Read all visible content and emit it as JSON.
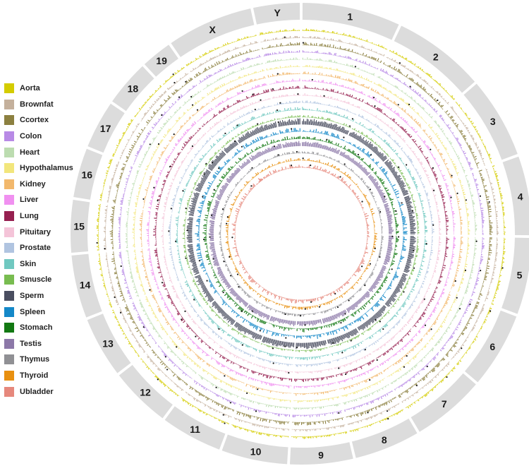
{
  "chart_data": {
    "type": "circos",
    "title": "",
    "chromosomes": [
      {
        "name": "1",
        "size": 195
      },
      {
        "name": "2",
        "size": 182
      },
      {
        "name": "3",
        "size": 160
      },
      {
        "name": "4",
        "size": 157
      },
      {
        "name": "5",
        "size": 152
      },
      {
        "name": "6",
        "size": 150
      },
      {
        "name": "7",
        "size": 145
      },
      {
        "name": "8",
        "size": 130
      },
      {
        "name": "9",
        "size": 125
      },
      {
        "name": "10",
        "size": 131
      },
      {
        "name": "11",
        "size": 122
      },
      {
        "name": "12",
        "size": 120
      },
      {
        "name": "13",
        "size": 120
      },
      {
        "name": "14",
        "size": 125
      },
      {
        "name": "15",
        "size": 104
      },
      {
        "name": "16",
        "size": 98
      },
      {
        "name": "17",
        "size": 95
      },
      {
        "name": "18",
        "size": 91
      },
      {
        "name": "19",
        "size": 61
      },
      {
        "name": "X",
        "size": 171
      },
      {
        "name": "Y",
        "size": 92
      }
    ],
    "tracks": [
      {
        "name": "Aorta",
        "color": "#d4cc00"
      },
      {
        "name": "Brownfat",
        "color": "#c4b09c"
      },
      {
        "name": "Ccortex",
        "color": "#8c8040"
      },
      {
        "name": "Colon",
        "color": "#b88ae6"
      },
      {
        "name": "Heart",
        "color": "#bcdcb0"
      },
      {
        "name": "Hypothalamus",
        "color": "#f2e67c"
      },
      {
        "name": "Kidney",
        "color": "#f2b86c"
      },
      {
        "name": "Liver",
        "color": "#f090f0"
      },
      {
        "name": "Lung",
        "color": "#962050"
      },
      {
        "name": "Pituitary",
        "color": "#f4c4d8"
      },
      {
        "name": "Prostate",
        "color": "#b0c4e0"
      },
      {
        "name": "Skin",
        "color": "#70c8c0"
      },
      {
        "name": "Smuscle",
        "color": "#78bc50"
      },
      {
        "name": "Sperm",
        "color": "#4a4e60"
      },
      {
        "name": "Spleen",
        "color": "#1488c8"
      },
      {
        "name": "Stomach",
        "color": "#127812"
      },
      {
        "name": "Testis",
        "color": "#8c78a8"
      },
      {
        "name": "Thymus",
        "color": "#909094"
      },
      {
        "name": "Thyroid",
        "color": "#e89010"
      },
      {
        "name": "Ubladder",
        "color": "#e6887c"
      }
    ],
    "track_signal_levels": [
      0.3,
      0.28,
      0.45,
      0.35,
      0.3,
      0.3,
      0.35,
      0.35,
      0.4,
      0.3,
      0.3,
      0.4,
      0.3,
      0.85,
      0.6,
      0.5,
      0.7,
      0.3,
      0.4,
      0.55
    ],
    "legend_position": "left"
  }
}
